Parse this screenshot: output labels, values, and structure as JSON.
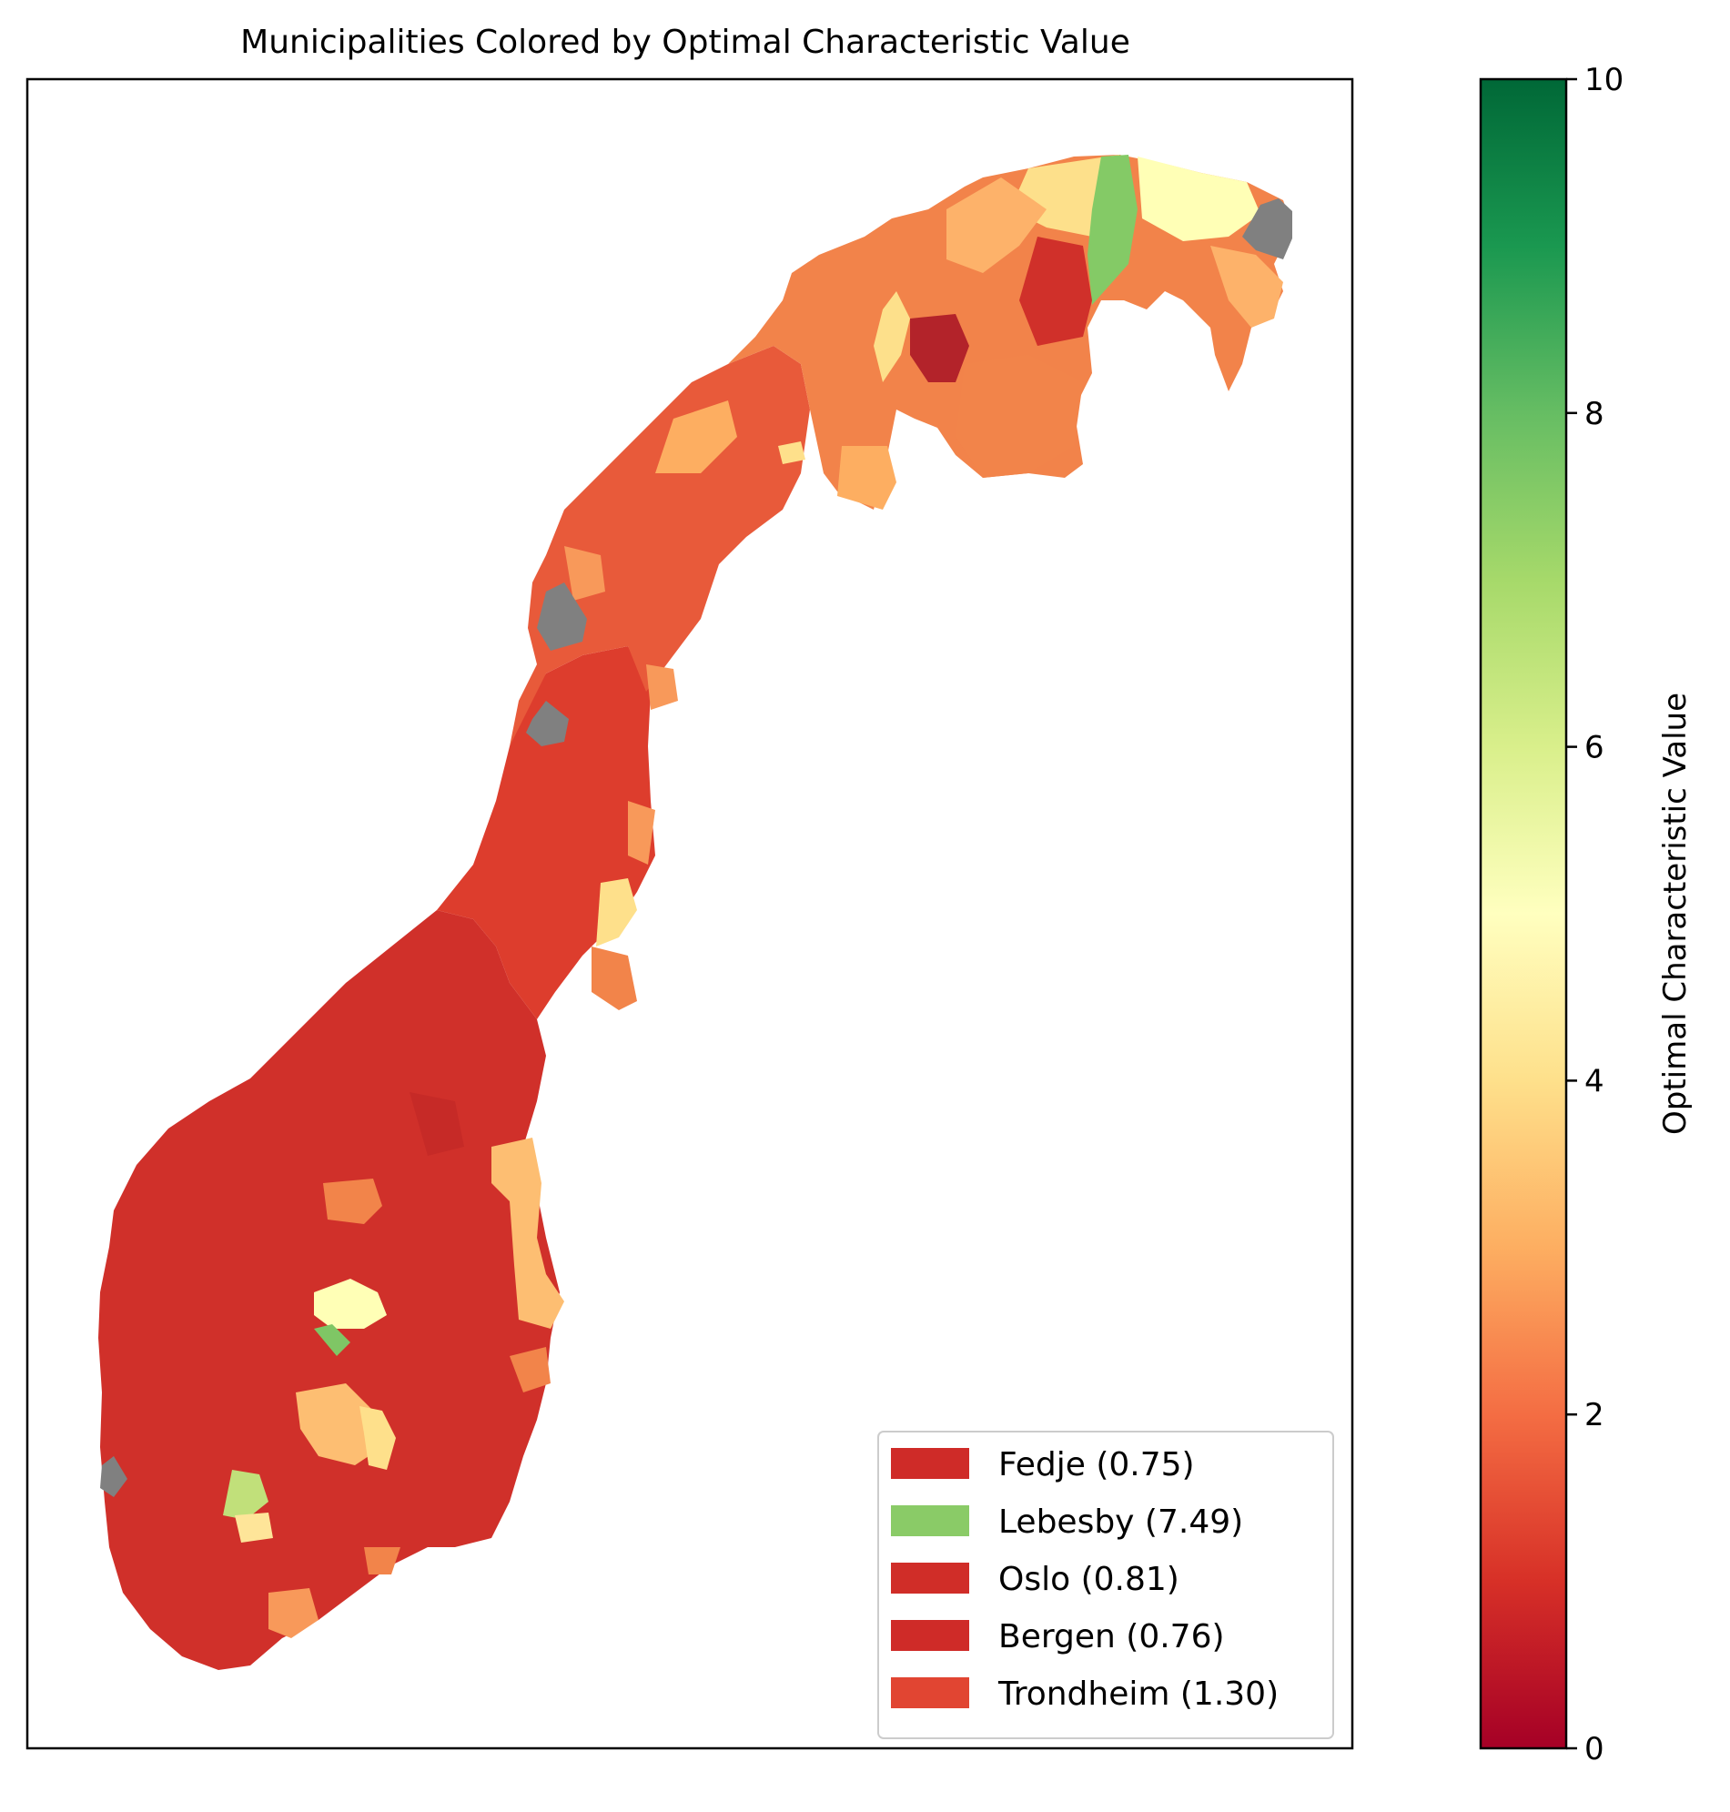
{
  "title": "Municipalities Colored by Optimal Characteristic Value",
  "colorbar": {
    "label": "Optimal Characteristic Value",
    "min": 0,
    "max": 10,
    "ticks": [
      "0",
      "2",
      "4",
      "6",
      "8",
      "10"
    ],
    "colormap": "RdYlGn",
    "stops": [
      "#a50026",
      "#d73027",
      "#f46d43",
      "#fdae61",
      "#fee08b",
      "#ffffbf",
      "#d9ef8b",
      "#a6d96a",
      "#66bd63",
      "#1a9850",
      "#006837"
    ]
  },
  "legend": {
    "placement": "lower-right",
    "items": [
      {
        "label": "Fedje (0.75)",
        "value": 0.75,
        "color": "#cf2b28"
      },
      {
        "label": "Lebesby (7.49)",
        "value": 7.49,
        "color": "#8acb67"
      },
      {
        "label": "Oslo (0.81)",
        "value": 0.81,
        "color": "#d02d28"
      },
      {
        "label": "Bergen (0.76)",
        "value": 0.76,
        "color": "#cf2b28"
      },
      {
        "label": "Trondheim (1.30)",
        "value": 1.3,
        "color": "#e14532"
      }
    ]
  },
  "map": {
    "no_data_color": "#808080",
    "region_colors": {
      "south": "#d0302a",
      "south_dark": "#c62a27",
      "mid": "#dd3d2d",
      "north": "#e85a3a",
      "finnmark": "#f2834a"
    }
  }
}
